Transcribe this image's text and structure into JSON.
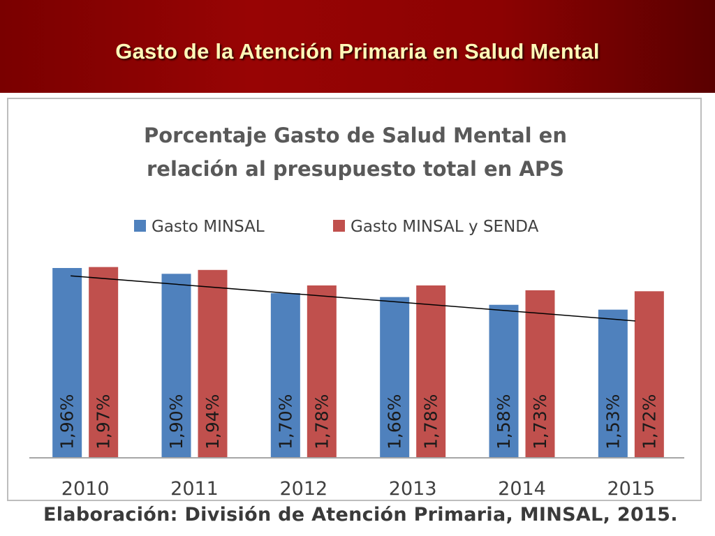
{
  "slide": {
    "title": "Gasto de la Atención Primaria en Salud Mental",
    "source": "Elaboración: División de Atención Primaria, MINSAL, 2015."
  },
  "colors": {
    "banner": "#8c0000",
    "title_text": "#fff8b8",
    "series_1": "#4f81bd",
    "series_2": "#c0504d",
    "trendline": "#000000"
  },
  "chart_data": {
    "type": "bar",
    "title_lines": [
      "Porcentaje Gasto de Salud Mental  en",
      "relación al presupuesto total en APS"
    ],
    "categories": [
      "2010",
      "2011",
      "2012",
      "2013",
      "2014",
      "2015"
    ],
    "series": [
      {
        "name": "Gasto MINSAL",
        "color": "#4f81bd",
        "values": [
          1.96,
          1.9,
          1.7,
          1.66,
          1.58,
          1.53
        ],
        "labels": [
          "1,96%",
          "1,90%",
          "1,70%",
          "1,66%",
          "1,58%",
          "1,53%"
        ]
      },
      {
        "name": "Gasto MINSAL y SENDA",
        "color": "#c0504d",
        "values": [
          1.97,
          1.94,
          1.78,
          1.78,
          1.73,
          1.72
        ],
        "labels": [
          "1,97%",
          "1,94%",
          "1,78%",
          "1,78%",
          "1,73%",
          "1,72%"
        ]
      }
    ],
    "trendline": {
      "series": "Gasto MINSAL",
      "type": "linear"
    },
    "legend_position": "top-center",
    "data_label_orientation": "vertical",
    "grid": false,
    "ylim": [
      0,
      2.15
    ]
  }
}
